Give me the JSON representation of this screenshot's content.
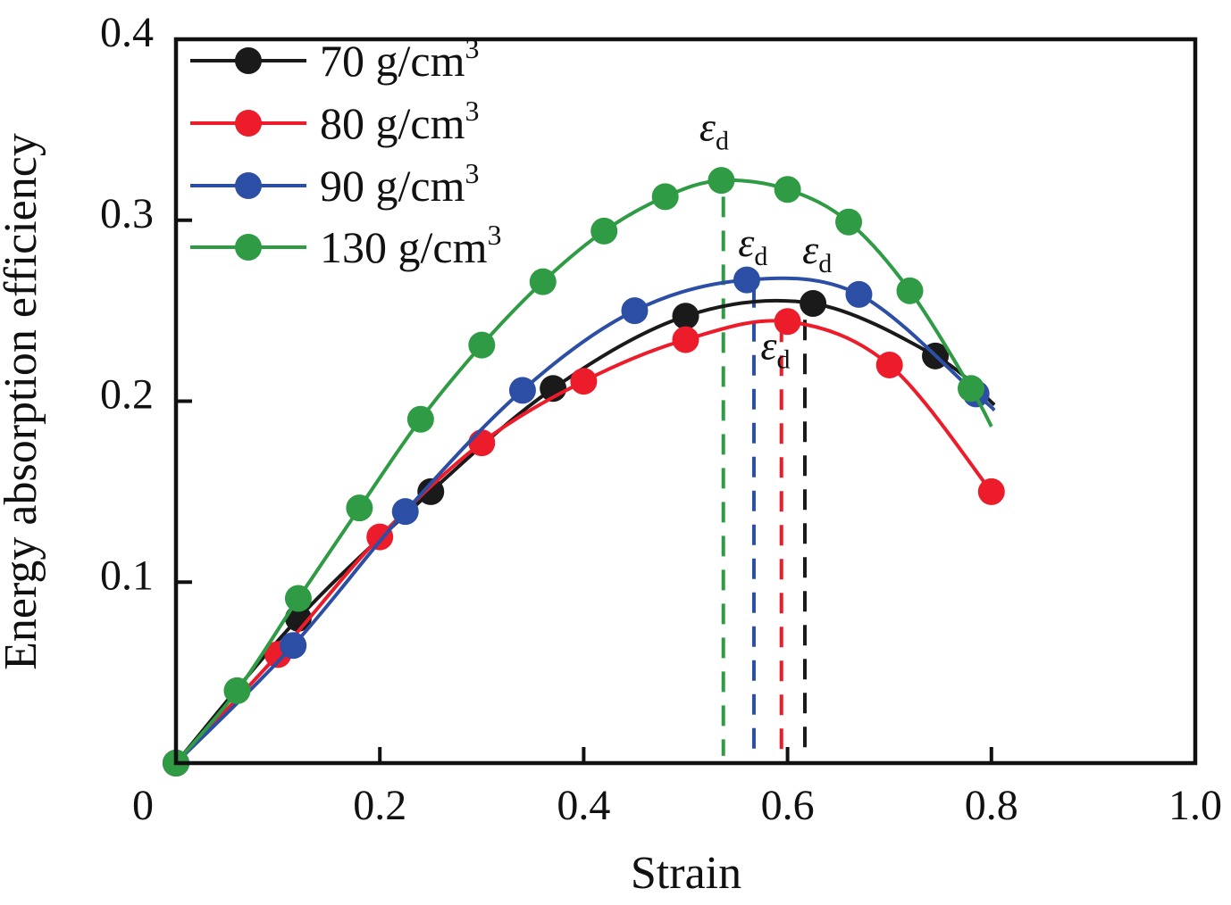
{
  "figure": {
    "background": "#ffffff",
    "description_texts": {
      "x_axis_title": "Strain",
      "y_axis_title": "Energy absorption efficiency"
    }
  },
  "chart_data": {
    "type": "line",
    "title": "",
    "xlabel": "Strain",
    "ylabel": "Energy absorption efficiency",
    "xlim": [
      0,
      1.0
    ],
    "ylim": [
      0,
      0.4
    ],
    "grid": false,
    "legend_position": "upper-left-inside",
    "x_ticks": [
      {
        "value": 0.0,
        "label": "0"
      },
      {
        "value": 0.2,
        "label": "0.2"
      },
      {
        "value": 0.4,
        "label": "0.4"
      },
      {
        "value": 0.6,
        "label": "0.6"
      },
      {
        "value": 0.8,
        "label": "0.8"
      },
      {
        "value": 1.0,
        "label": "1.0"
      }
    ],
    "y_ticks": [
      {
        "value": 0.1,
        "label": "0.1"
      },
      {
        "value": 0.2,
        "label": "0.2"
      },
      {
        "value": 0.3,
        "label": "0.3"
      },
      {
        "value": 0.4,
        "label": "0.4"
      }
    ],
    "series": [
      {
        "name": "70 g/cm³",
        "label_base": "70 g/cm",
        "label_sup": "3",
        "color": "#1a1a1a",
        "densification_strain": 0.617,
        "points": [
          [
            0.0,
            0.0
          ],
          [
            0.12,
            0.08
          ],
          [
            0.25,
            0.15
          ],
          [
            0.37,
            0.207
          ],
          [
            0.5,
            0.247
          ],
          [
            0.625,
            0.254
          ],
          [
            0.745,
            0.225
          ]
        ],
        "line_tail": [
          [
            0.803,
            0.198
          ]
        ]
      },
      {
        "name": "80 g/cm³",
        "label_base": "80 g/cm",
        "label_sup": "3",
        "color": "#ec1c2b",
        "densification_strain": 0.594,
        "points": [
          [
            0.0,
            0.0
          ],
          [
            0.1,
            0.06
          ],
          [
            0.2,
            0.125
          ],
          [
            0.3,
            0.177
          ],
          [
            0.4,
            0.211
          ],
          [
            0.5,
            0.234
          ],
          [
            0.6,
            0.244
          ],
          [
            0.7,
            0.22
          ],
          [
            0.8,
            0.15
          ]
        ],
        "line_tail": []
      },
      {
        "name": "90 g/cm³",
        "label_base": "90 g/cm",
        "label_sup": "3",
        "color": "#2c4fa5",
        "densification_strain": 0.567,
        "points": [
          [
            0.0,
            0.0
          ],
          [
            0.115,
            0.065
          ],
          [
            0.225,
            0.139
          ],
          [
            0.34,
            0.206
          ],
          [
            0.45,
            0.25
          ],
          [
            0.56,
            0.267
          ],
          [
            0.67,
            0.259
          ],
          [
            0.785,
            0.204
          ]
        ],
        "line_tail": [
          [
            0.803,
            0.195
          ]
        ]
      },
      {
        "name": "130 g/cm³",
        "label_base": "130 g/cm",
        "label_sup": "3",
        "color": "#2f9b44",
        "densification_strain": 0.537,
        "points": [
          [
            0.0,
            0.0
          ],
          [
            0.06,
            0.04
          ],
          [
            0.12,
            0.091
          ],
          [
            0.18,
            0.141
          ],
          [
            0.24,
            0.19
          ],
          [
            0.3,
            0.231
          ],
          [
            0.36,
            0.266
          ],
          [
            0.42,
            0.294
          ],
          [
            0.48,
            0.313
          ],
          [
            0.535,
            0.322
          ],
          [
            0.6,
            0.317
          ],
          [
            0.66,
            0.299
          ],
          [
            0.72,
            0.261
          ],
          [
            0.78,
            0.207
          ]
        ],
        "line_tail": [
          [
            0.8,
            0.186
          ]
        ]
      }
    ],
    "annotations": {
      "dashed_lines": [
        {
          "series": "130 g/cm³",
          "color": "#2f9b44",
          "strain": 0.537,
          "top_eff": 0.313,
          "bottom_eff": 0.004
        },
        {
          "series": "90 g/cm³",
          "color": "#2c4fa5",
          "strain": 0.567,
          "top_eff": 0.263,
          "bottom_eff": 0.004
        },
        {
          "series": "80 g/cm³",
          "color": "#ec1c2b",
          "strain": 0.594,
          "top_eff": 0.244,
          "bottom_eff": 0.004
        },
        {
          "series": "70 g/cm³",
          "color": "#1a1a1a",
          "strain": 0.617,
          "top_eff": 0.245,
          "bottom_eff": 0.004
        }
      ],
      "epsilon_labels": [
        {
          "series": "130 g/cm³",
          "symbol": "ε",
          "subscript": "d",
          "color": "#2f9b44",
          "strain": 0.528,
          "eff": 0.352
        },
        {
          "series": "90 g/cm³",
          "symbol": "ε",
          "subscript": "d",
          "color": "#2c4fa5",
          "strain": 0.566,
          "eff": 0.288
        },
        {
          "series": "70 g/cm³",
          "symbol": "ε",
          "subscript": "d",
          "color": "#1a1a1a",
          "strain": 0.629,
          "eff": 0.284
        },
        {
          "series": "80 g/cm³",
          "symbol": "ε",
          "subscript": "d",
          "color": "#ec1c2b",
          "strain": 0.588,
          "eff": 0.231
        }
      ]
    },
    "legend": {
      "items": [
        "70 g/cm³",
        "80 g/cm³",
        "90 g/cm³",
        "130 g/cm³"
      ]
    }
  }
}
